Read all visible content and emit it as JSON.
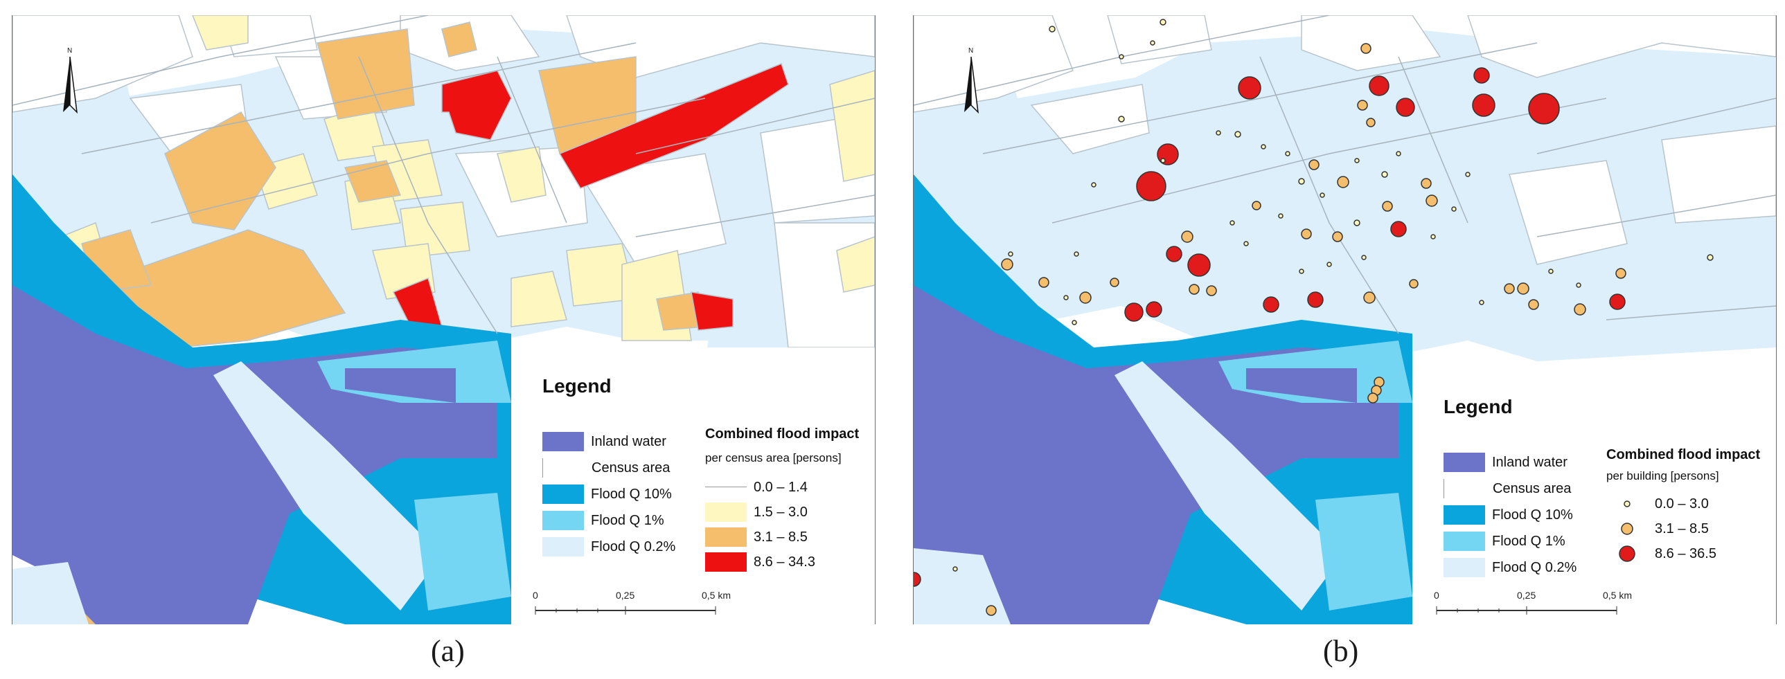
{
  "panels": [
    {
      "caption": "(a)",
      "legend": {
        "title": "Legend",
        "items": [
          {
            "label": "Inland water",
            "color": "#6b74c8"
          },
          {
            "label": "Census area",
            "color": "#ffffff"
          },
          {
            "label": "Flood Q 10%",
            "color": "#0aa5dc"
          },
          {
            "label": "Flood Q 1%",
            "color": "#75d6f4"
          },
          {
            "label": "Flood Q 0.2%",
            "color": "#dceffa"
          }
        ],
        "impact_title": "Combined flood impact",
        "impact_subtitle": "per census area [persons]",
        "classes": [
          {
            "label": "0.0 – 1.4",
            "color": "#ffffff"
          },
          {
            "label": "1.5 – 3.0",
            "color": "#fff7c0"
          },
          {
            "label": "3.1 – 8.5",
            "color": "#f5be6c"
          },
          {
            "label": "8.6 – 34.3",
            "color": "#ee1111"
          }
        ]
      },
      "scale": {
        "labels": [
          "0",
          "0,25",
          "0,5 km"
        ]
      }
    },
    {
      "caption": "(b)",
      "legend": {
        "title": "Legend",
        "items": [
          {
            "label": "Inland water",
            "color": "#6b74c8"
          },
          {
            "label": "Census area",
            "color": "#ffffff"
          },
          {
            "label": "Flood Q 10%",
            "color": "#0aa5dc"
          },
          {
            "label": "Flood Q 1%",
            "color": "#75d6f4"
          },
          {
            "label": "Flood Q 0.2%",
            "color": "#dceffa"
          }
        ],
        "impact_title": "Combined flood impact",
        "impact_subtitle": "per building [persons]",
        "classes": [
          {
            "label": "0.0 – 3.0",
            "color": "#fff7c0"
          },
          {
            "label": "3.1 – 8.5",
            "color": "#f5be6c"
          },
          {
            "label": "8.6 – 36.5",
            "color": "#e11b1b"
          }
        ]
      },
      "scale": {
        "labels": [
          "0",
          "0,25",
          "0,5 km"
        ]
      }
    }
  ],
  "north_arrow_label": "N"
}
